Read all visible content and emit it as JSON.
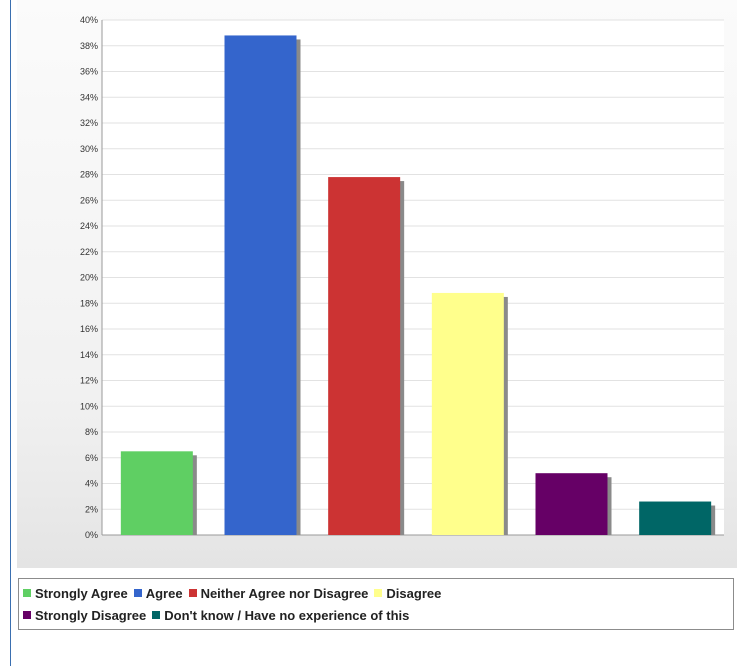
{
  "header": {
    "caption": ""
  },
  "chart_data": {
    "type": "bar",
    "title": "",
    "xlabel": "",
    "ylabel": "",
    "ylim": [
      0,
      40
    ],
    "yticks": [
      "0%",
      "2%",
      "4%",
      "6%",
      "8%",
      "10%",
      "12%",
      "14%",
      "16%",
      "18%",
      "20%",
      "22%",
      "24%",
      "26%",
      "28%",
      "30%",
      "32%",
      "34%",
      "36%",
      "38%",
      "40%"
    ],
    "grid": true,
    "legend_position": "bottom",
    "categories": [
      "Strongly Agree",
      "Agree",
      "Neither Agree nor Disagree",
      "Disagree",
      "Strongly Disagree",
      "Don't know / Have no experience of this"
    ],
    "values": [
      6.5,
      38.8,
      27.8,
      18.8,
      4.8,
      2.6
    ],
    "colors": [
      "#5fcf63",
      "#3465cc",
      "#cc3333",
      "#ffff8c",
      "#660066",
      "#006666"
    ]
  },
  "legend": {
    "rows": [
      [
        {
          "label": "Strongly Agree",
          "color": "#5fcf63"
        },
        {
          "label": "Agree",
          "color": "#3465cc"
        },
        {
          "label": "Neither Agree nor Disagree",
          "color": "#cc3333"
        },
        {
          "label": "Disagree",
          "color": "#ffff8c"
        }
      ],
      [
        {
          "label": "Strongly Disagree",
          "color": "#660066"
        },
        {
          "label": "Don't know / Have no experience of this",
          "color": "#006666"
        }
      ]
    ]
  }
}
